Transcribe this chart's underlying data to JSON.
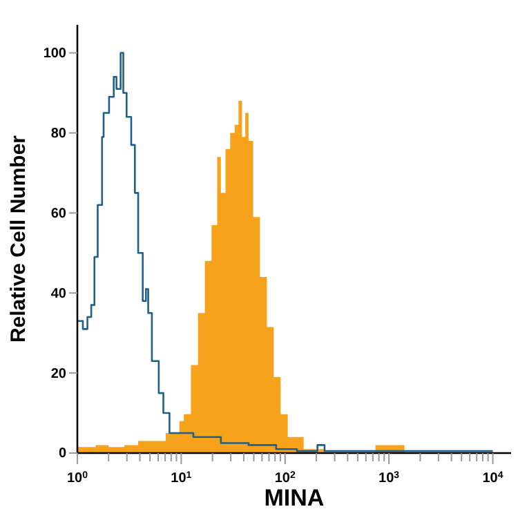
{
  "chart_data": {
    "type": "step",
    "xlabel": "MINA",
    "ylabel": "Relative Cell Number",
    "log": "x",
    "xlim": [
      1,
      15000
    ],
    "ylim": [
      0,
      107
    ],
    "xticks": [
      {
        "value": 1,
        "label": "10$^{0}$"
      },
      {
        "value": 2,
        "label": null
      },
      {
        "value": 3,
        "label": null
      },
      {
        "value": 4,
        "label": null
      },
      {
        "value": 5,
        "label": null
      },
      {
        "value": 6,
        "label": null
      },
      {
        "value": 7,
        "label": null
      },
      {
        "value": 8,
        "label": null
      },
      {
        "value": 9,
        "label": null
      },
      {
        "value": 10,
        "label": "10$^{1}$"
      },
      {
        "value": 20,
        "label": null
      },
      {
        "value": 30,
        "label": null
      },
      {
        "value": 40,
        "label": null
      },
      {
        "value": 50,
        "label": null
      },
      {
        "value": 60,
        "label": null
      },
      {
        "value": 70,
        "label": null
      },
      {
        "value": 80,
        "label": null
      },
      {
        "value": 90,
        "label": null
      },
      {
        "value": 100,
        "label": "10$^{2}$"
      },
      {
        "value": 200,
        "label": null
      },
      {
        "value": 300,
        "label": null
      },
      {
        "value": 400,
        "label": null
      },
      {
        "value": 500,
        "label": null
      },
      {
        "value": 600,
        "label": null
      },
      {
        "value": 700,
        "label": null
      },
      {
        "value": 800,
        "label": null
      },
      {
        "value": 900,
        "label": null
      },
      {
        "value": 1000,
        "label": "10$^{3}$"
      },
      {
        "value": 2000,
        "label": null
      },
      {
        "value": 3000,
        "label": null
      },
      {
        "value": 4000,
        "label": null
      },
      {
        "value": 5000,
        "label": null
      },
      {
        "value": 6000,
        "label": null
      },
      {
        "value": 7000,
        "label": null
      },
      {
        "value": 8000,
        "label": null
      },
      {
        "value": 9000,
        "label": null
      },
      {
        "value": 10000,
        "label": "10$^{4}$"
      }
    ],
    "yticks": [
      0,
      20,
      40,
      60,
      80,
      100
    ],
    "grid": false,
    "series": [
      {
        "type": "area",
        "color": "#f7a21b",
        "x": [
          1,
          1.5,
          2.0,
          2.83,
          3.85,
          6.08,
          7.1,
          9.6,
          10.6,
          12.4,
          14.5,
          16.9,
          19.6,
          22.2,
          24.1,
          26.7,
          29.6,
          32.7,
          35.6,
          38.5,
          41.4,
          44.5,
          49.2,
          57.3,
          66.8,
          77.8,
          90.6,
          106,
          130,
          151,
          240,
          741,
          1000,
          1410,
          10000
        ],
        "values": [
          1.5,
          2,
          1.5,
          2,
          3,
          3,
          5,
          8,
          9.7,
          22,
          35,
          48,
          57,
          74,
          65,
          76,
          80,
          82,
          88,
          79,
          85,
          78,
          59,
          44,
          31.5,
          19,
          9.7,
          4,
          4,
          1,
          0,
          2,
          2,
          0,
          0
        ]
      },
      {
        "color": "#1f5f8b",
        "x": [
          1,
          1.13,
          1.25,
          1.36,
          1.46,
          1.57,
          1.73,
          1.79,
          2.02,
          2.24,
          2.38,
          2.61,
          2.77,
          2.98,
          3.3,
          3.58,
          3.85,
          4.26,
          4.57,
          4.81,
          5.22,
          6.08,
          6.73,
          7.71,
          8.71,
          13.1,
          24.1,
          44.5,
          82,
          130,
          205,
          240,
          10000
        ],
        "values": [
          33,
          31,
          34,
          37,
          49,
          62,
          79,
          85,
          89,
          94,
          91,
          100,
          90,
          84,
          77,
          65,
          50,
          38,
          41,
          35,
          23,
          15,
          10,
          5,
          5,
          4,
          2.5,
          2,
          1,
          0.5,
          2,
          0.5,
          0.5
        ]
      }
    ]
  }
}
